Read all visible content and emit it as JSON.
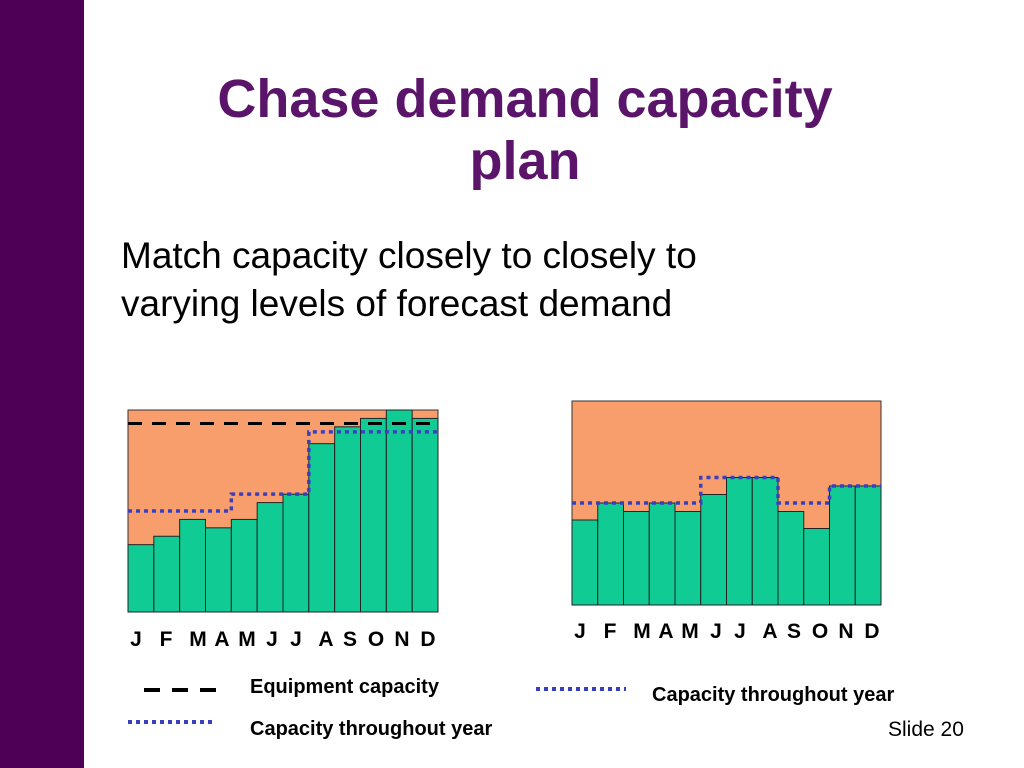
{
  "slide": {
    "title_lines": [
      "Chase demand capacity",
      "plan"
    ],
    "body_lines": [
      "Match capacity closely to closely to",
      "varying levels of forecast demand"
    ],
    "slide_number": "Slide 20",
    "colors": {
      "left_band": "#4d0055",
      "title": "#5a1469",
      "plot_background": "#f89e6c",
      "bars": "#10cc94",
      "capacity_line": "#3a3fc0",
      "equipment_line": "#000000"
    }
  },
  "chart_data": [
    {
      "type": "bar",
      "categories": [
        "J",
        "F",
        "M",
        "A",
        "M",
        "J",
        "J",
        "A",
        "S",
        "O",
        "N",
        "D"
      ],
      "values": [
        4,
        4.5,
        5.5,
        5,
        5.5,
        6.5,
        7,
        10,
        11,
        11.5,
        12,
        11.5
      ],
      "ylim": [
        0,
        12
      ],
      "grid": false,
      "overlays": [
        {
          "name": "Equipment capacity",
          "style": "dashed",
          "values": [
            11.2,
            11.2,
            11.2,
            11.2,
            11.2,
            11.2,
            11.2,
            11.2,
            11.2,
            11.2,
            11.2,
            11.2
          ]
        },
        {
          "name": "Capacity throughout year",
          "style": "dotted",
          "values": [
            6,
            6,
            6,
            6,
            7,
            7,
            7,
            10.7,
            10.7,
            10.7,
            10.7,
            10.7
          ]
        }
      ]
    },
    {
      "type": "bar",
      "categories": [
        "J",
        "F",
        "M",
        "A",
        "M",
        "J",
        "J",
        "A",
        "S",
        "O",
        "N",
        "D"
      ],
      "values": [
        5,
        6,
        5.5,
        6,
        5.5,
        6.5,
        7.5,
        7.5,
        5.5,
        4.5,
        7,
        7
      ],
      "ylim": [
        0,
        12
      ],
      "grid": false,
      "overlays": [
        {
          "name": "Capacity throughout year",
          "style": "dotted",
          "values": [
            6,
            6,
            6,
            6,
            6,
            7.5,
            7.5,
            7.5,
            6,
            6,
            7,
            7
          ]
        }
      ]
    }
  ],
  "legend": {
    "left": [
      {
        "label": "Equipment capacity",
        "style": "dashed"
      },
      {
        "label": "Capacity throughout year",
        "style": "dotted"
      }
    ],
    "right": [
      {
        "label": "Capacity throughout year",
        "style": "dotted"
      }
    ]
  }
}
